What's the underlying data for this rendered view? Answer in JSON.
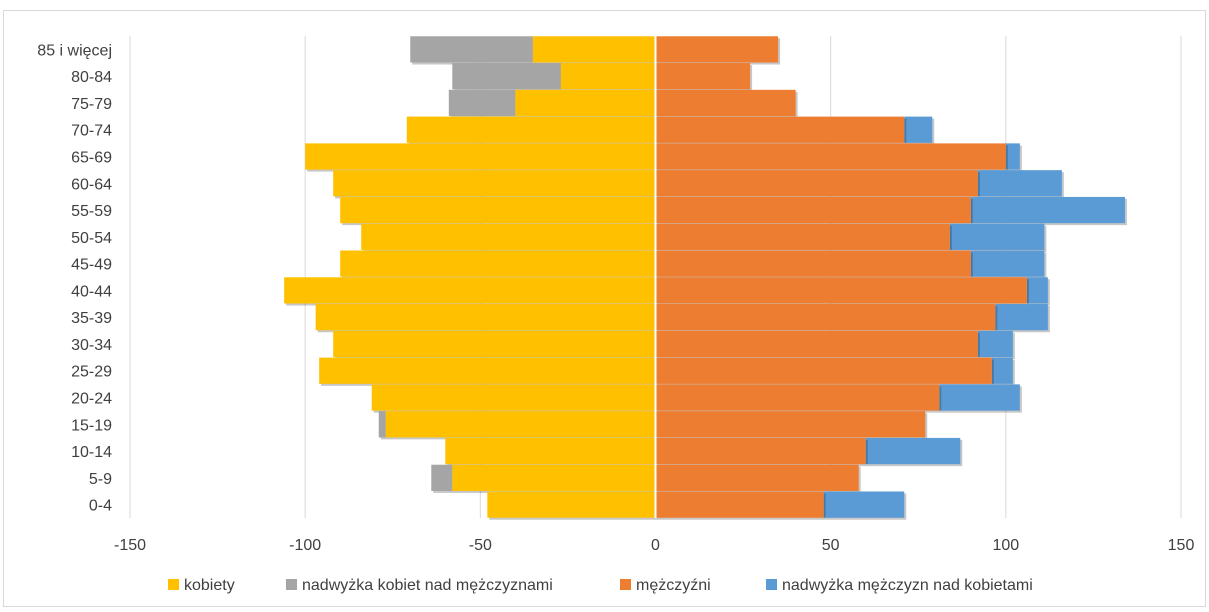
{
  "chart_data": {
    "type": "bar",
    "orientation": "horizontal",
    "stacked": true,
    "categories": [
      "85 i więcej",
      "80-84",
      "75-79",
      "70-74",
      "65-69",
      "60-64",
      "55-59",
      "50-54",
      "45-49",
      "40-44",
      "35-39",
      "30-34",
      "25-29",
      "20-24",
      "15-19",
      "10-14",
      "5-9",
      "0-4"
    ],
    "series": [
      {
        "name": "kobiety",
        "color": "#ffc000",
        "values": [
          -35,
          -27,
          -40,
          -71,
          -100,
          -92,
          -90,
          -84,
          -90,
          -106,
          -97,
          -92,
          -96,
          -81,
          -77,
          -60,
          -58,
          -48
        ]
      },
      {
        "name": "nadwyżka kobiet nad mężczyznami",
        "color": "#a5a5a5",
        "values": [
          -35,
          -31,
          -19,
          0,
          0,
          0,
          0,
          0,
          0,
          0,
          0,
          0,
          0,
          0,
          -2,
          0,
          -6,
          0
        ]
      },
      {
        "name": "mężczyźni",
        "color": "#ed7d31",
        "values": [
          35,
          27,
          40,
          71,
          100,
          92,
          90,
          84,
          90,
          106,
          97,
          92,
          96,
          81,
          77,
          60,
          58,
          48
        ]
      },
      {
        "name": "nadwyżka mężczyzn nad kobietami",
        "color": "#5b9bd5",
        "values": [
          0,
          0,
          0,
          8,
          4,
          24,
          44,
          27,
          21,
          6,
          15,
          10,
          6,
          23,
          0,
          27,
          0,
          23
        ]
      }
    ],
    "xlim": [
      -150,
      150
    ],
    "xticks": [
      "-150",
      "-100",
      "-50",
      "0",
      "50",
      "100",
      "150"
    ],
    "grid": true,
    "legend_position": "bottom"
  }
}
